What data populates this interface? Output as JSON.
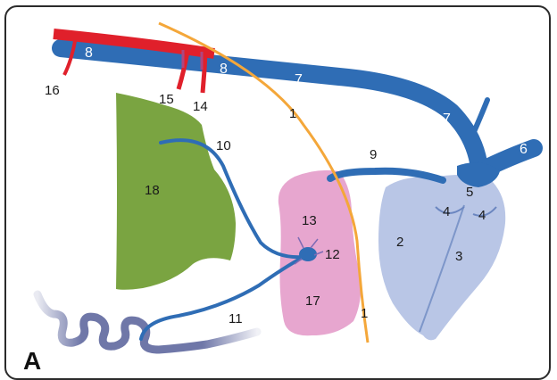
{
  "panel_label": "A",
  "colors": {
    "vessel": "#2f6db5",
    "artery": "#e0202b",
    "nerve_line": "#f4a73a",
    "heart": "#b9c6e6",
    "gland_pink": "#e7a6cf",
    "lymph_green": "#7aa441",
    "coil": "#6f77a8"
  },
  "labels": {
    "n1_top": "1",
    "n1_bottom": "1",
    "n2": "2",
    "n3": "3",
    "n4_left": "4",
    "n4_right": "4",
    "n5": "5",
    "n6": "6",
    "n7_mid": "7",
    "n7_right": "7",
    "n8_left": "8",
    "n8_mid": "8",
    "n9": "9",
    "n10": "10",
    "n11": "11",
    "n12": "12",
    "n13": "13",
    "n14": "14",
    "n15": "15",
    "n16": "16",
    "n17": "17",
    "n18": "18"
  }
}
